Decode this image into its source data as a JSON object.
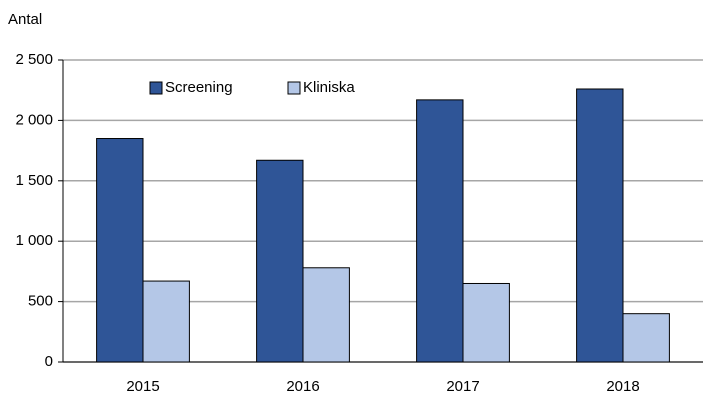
{
  "chart_data": {
    "type": "bar",
    "y_label": "Antal",
    "categories": [
      "2015",
      "2016",
      "2017",
      "2018"
    ],
    "series": [
      {
        "name": "Screening",
        "color": "#2f5597",
        "values": [
          1850,
          1670,
          2170,
          2260
        ]
      },
      {
        "name": "Kliniska",
        "color": "#b4c7e7",
        "values": [
          670,
          780,
          650,
          400
        ]
      }
    ],
    "ylim": [
      0,
      2500
    ],
    "yticks": [
      0,
      500,
      {
        "value": 1000,
        "label": "1 000"
      },
      {
        "value": 1500,
        "label": "1 500"
      },
      {
        "value": 2000,
        "label": "2 000"
      },
      {
        "value": 2500,
        "label": "2 500"
      }
    ],
    "grid": true,
    "legend": "top-left"
  }
}
